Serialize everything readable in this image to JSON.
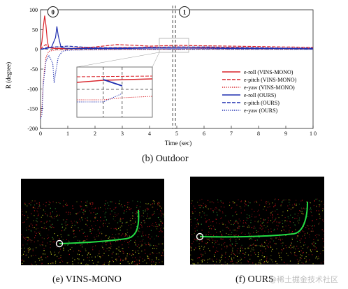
{
  "chart_data": {
    "type": "line",
    "xlabel": "Time (sec)",
    "ylabel": "R (degree)",
    "xlim": [
      0,
      10
    ],
    "ylim": [
      -200,
      100
    ],
    "xticks": [
      "0",
      "1",
      "2",
      "3",
      "4",
      "5",
      "6",
      "7",
      "8",
      "9",
      "1 0"
    ],
    "yticks": [
      "100",
      "50",
      "0",
      "-50",
      "-100",
      "-150",
      "-200"
    ],
    "grid": false,
    "legend_position": "right-middle",
    "markers": [
      {
        "label": "0",
        "x": 0.2
      },
      {
        "label": "1",
        "x": 4.9
      }
    ],
    "series": [
      {
        "name": "e-roll (VINS-MONO)",
        "color": "#d9232a",
        "style": "solid",
        "x": [
          0,
          0.05,
          0.1,
          0.15,
          0.2,
          0.25,
          0.3,
          0.4,
          0.6,
          1,
          2,
          3,
          4,
          5,
          6,
          7,
          8,
          9,
          10
        ],
        "y": [
          0,
          20,
          55,
          85,
          60,
          20,
          5,
          3,
          2,
          2,
          3,
          4,
          5,
          6,
          5,
          4,
          3,
          2,
          2
        ]
      },
      {
        "name": "e-pitch (VINS-MONO)",
        "color": "#d9232a",
        "style": "dashed",
        "x": [
          0,
          0.1,
          0.2,
          0.3,
          0.5,
          1,
          2,
          2.8,
          3.5,
          4,
          5,
          6,
          7,
          8,
          9,
          10
        ],
        "y": [
          0,
          8,
          12,
          5,
          3,
          2,
          6,
          12,
          10,
          8,
          10,
          9,
          8,
          7,
          6,
          5
        ]
      },
      {
        "name": "e-yaw (VINS-MONO)",
        "color": "#d9232a",
        "style": "dotted",
        "x": [
          0,
          0.05,
          0.1,
          0.2,
          0.3,
          0.5,
          1,
          2,
          3,
          4,
          5,
          6,
          7,
          8,
          9,
          10
        ],
        "y": [
          -170,
          -150,
          -80,
          -20,
          -5,
          -2,
          -1,
          -1,
          0,
          0,
          0,
          1,
          1,
          1,
          1,
          1
        ]
      },
      {
        "name": "e-roll (OURS)",
        "color": "#1f2fb0",
        "style": "solid",
        "x": [
          0,
          0.2,
          0.4,
          0.55,
          0.6,
          0.65,
          0.75,
          0.9,
          1.2,
          2,
          3,
          4,
          5,
          6,
          7,
          8,
          9,
          10
        ],
        "y": [
          0,
          2,
          5,
          30,
          58,
          35,
          5,
          3,
          2,
          2,
          2,
          3,
          3,
          3,
          2,
          2,
          2,
          1
        ]
      },
      {
        "name": "e-pitch (OURS)",
        "color": "#1f2fb0",
        "style": "dashed",
        "x": [
          0,
          0.2,
          0.5,
          1,
          1.5,
          2,
          3,
          4,
          5,
          6,
          7,
          8,
          9,
          10
        ],
        "y": [
          0,
          4,
          6,
          8,
          6,
          4,
          4,
          5,
          6,
          6,
          5,
          4,
          3,
          3
        ]
      },
      {
        "name": "e-yaw (OURS)",
        "color": "#1f2fb0",
        "style": "dotted",
        "x": [
          0,
          0.05,
          0.1,
          0.2,
          0.3,
          0.45,
          0.5,
          0.55,
          0.65,
          0.8,
          1,
          2,
          3,
          4,
          5,
          6,
          7,
          8,
          9,
          10
        ],
        "y": [
          -175,
          -165,
          -90,
          -30,
          -15,
          -35,
          -85,
          -60,
          -20,
          -5,
          -2,
          -1,
          0,
          0,
          0,
          0,
          0,
          0,
          0,
          0
        ]
      }
    ]
  },
  "captions": {
    "outdoor": "(b)  Outdoor",
    "vins_mono": "(e)  VINS-MONO",
    "ours": "(f)  OURS"
  },
  "watermark": "@稀土掘金技术社区",
  "colors": {
    "vins": "#d9232a",
    "ours": "#1f2fb0",
    "trajectory": "#22dd44",
    "panel_bg": "#000000"
  }
}
